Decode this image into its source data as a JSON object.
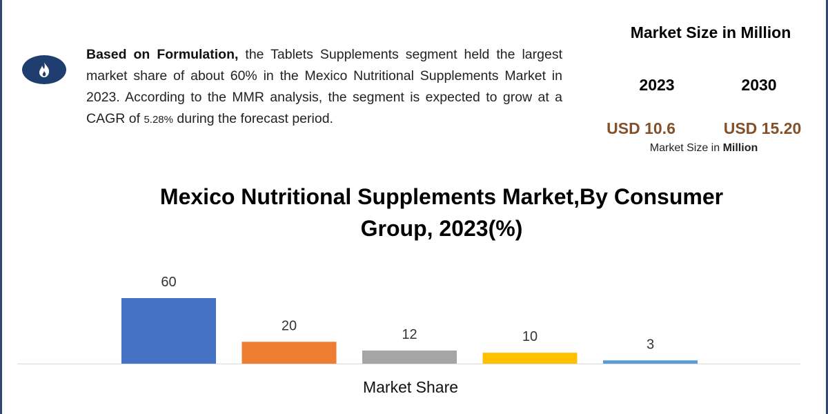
{
  "description": {
    "bold_lead": "Based on Formulation,",
    "text_before_cagr": " the Tablets Supplements segment held the largest market share of about 60% in the Mexico Nutritional Supplements Market in 2023. According to the MMR analysis, the segment is expected to grow at a CAGR of ",
    "cagr": "5.28%",
    "text_after_cagr": " during the forecast period."
  },
  "icon": "flame-icon",
  "market_size": {
    "title": "Market Size in Million",
    "years": [
      "2023",
      "2030"
    ],
    "values": [
      "USD 10.6",
      "USD 15.20"
    ],
    "subtitle_prefix": "Market Size in ",
    "subtitle_bold": "Million"
  },
  "chart_data": {
    "type": "bar",
    "title": "Mexico Nutritional Supplements Market,By Consumer Group, 2023(%)",
    "title_line1": "Mexico Nutritional Supplements Market,By Consumer",
    "title_line2": "Group, 2023(%)",
    "xlabel": "Market Share",
    "ylabel": "",
    "values": [
      60,
      20,
      12,
      10,
      3
    ],
    "colors": [
      "#4472c4",
      "#ed7d31",
      "#a5a5a5",
      "#ffc000",
      "#5b9bd5"
    ],
    "ylim": [
      0,
      60
    ],
    "grid": false
  }
}
